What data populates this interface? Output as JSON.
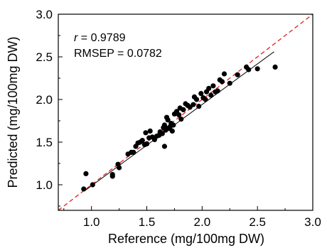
{
  "chart_data": {
    "type": "scatter",
    "xlabel": "Reference (mg/100mg DW)",
    "ylabel": "Predicted (mg/100mg DW)",
    "xlim": [
      0.7,
      3.0
    ],
    "ylim": [
      0.7,
      3.0
    ],
    "xticks": [
      "1.0",
      "1.5",
      "2.0",
      "2.5",
      "3.0"
    ],
    "yticks": [
      "1.0",
      "1.5",
      "2.0",
      "2.5",
      "3.0"
    ],
    "grid": false,
    "annotations": {
      "r_symbol": "r",
      "r_value": " = 0.9789",
      "rmsep": "RMSEP = 0.0782"
    },
    "reference_line": {
      "style": "dashed",
      "color": "#e02020",
      "from": [
        0.7,
        0.7
      ],
      "to": [
        3.0,
        3.0
      ]
    },
    "fit_line": {
      "style": "solid",
      "color": "#000000",
      "from": [
        0.95,
        0.94
      ],
      "to": [
        2.65,
        2.56
      ]
    },
    "marker_color": "#000000",
    "points": [
      [
        0.93,
        0.95
      ],
      [
        0.95,
        1.13
      ],
      [
        1.01,
        1.0
      ],
      [
        1.19,
        1.12
      ],
      [
        1.19,
        1.1
      ],
      [
        1.24,
        1.24
      ],
      [
        1.25,
        1.2
      ],
      [
        1.33,
        1.36
      ],
      [
        1.36,
        1.38
      ],
      [
        1.38,
        1.38
      ],
      [
        1.4,
        1.45
      ],
      [
        1.42,
        1.49
      ],
      [
        1.44,
        1.5
      ],
      [
        1.46,
        1.52
      ],
      [
        1.48,
        1.47
      ],
      [
        1.49,
        1.61
      ],
      [
        1.5,
        1.48
      ],
      [
        1.52,
        1.55
      ],
      [
        1.53,
        1.63
      ],
      [
        1.55,
        1.56
      ],
      [
        1.57,
        1.53
      ],
      [
        1.59,
        1.57
      ],
      [
        1.61,
        1.58
      ],
      [
        1.62,
        1.62
      ],
      [
        1.64,
        1.6
      ],
      [
        1.65,
        1.67
      ],
      [
        1.66,
        1.45
      ],
      [
        1.66,
        1.7
      ],
      [
        1.67,
        1.64
      ],
      [
        1.68,
        1.66
      ],
      [
        1.68,
        1.79
      ],
      [
        1.69,
        1.76
      ],
      [
        1.7,
        1.66
      ],
      [
        1.71,
        1.68
      ],
      [
        1.72,
        1.72
      ],
      [
        1.73,
        1.63
      ],
      [
        1.74,
        1.7
      ],
      [
        1.75,
        1.83
      ],
      [
        1.77,
        1.86
      ],
      [
        1.79,
        1.82
      ],
      [
        1.8,
        1.9
      ],
      [
        1.81,
        1.77
      ],
      [
        1.83,
        1.88
      ],
      [
        1.85,
        1.95
      ],
      [
        1.87,
        1.93
      ],
      [
        1.89,
        1.91
      ],
      [
        1.92,
        1.94
      ],
      [
        1.93,
        2.03
      ],
      [
        1.95,
        2.0
      ],
      [
        1.97,
        1.92
      ],
      [
        1.99,
        2.07
      ],
      [
        2.01,
        2.02
      ],
      [
        2.03,
        2.0
      ],
      [
        2.04,
        2.09
      ],
      [
        2.06,
        2.13
      ],
      [
        2.08,
        2.05
      ],
      [
        2.1,
        2.16
      ],
      [
        2.12,
        2.09
      ],
      [
        2.14,
        2.1
      ],
      [
        2.16,
        2.23
      ],
      [
        2.18,
        2.21
      ],
      [
        2.2,
        2.3
      ],
      [
        2.25,
        2.19
      ],
      [
        2.32,
        2.29
      ],
      [
        2.4,
        2.38
      ],
      [
        2.42,
        2.35
      ],
      [
        2.5,
        2.36
      ],
      [
        2.66,
        2.38
      ]
    ]
  }
}
